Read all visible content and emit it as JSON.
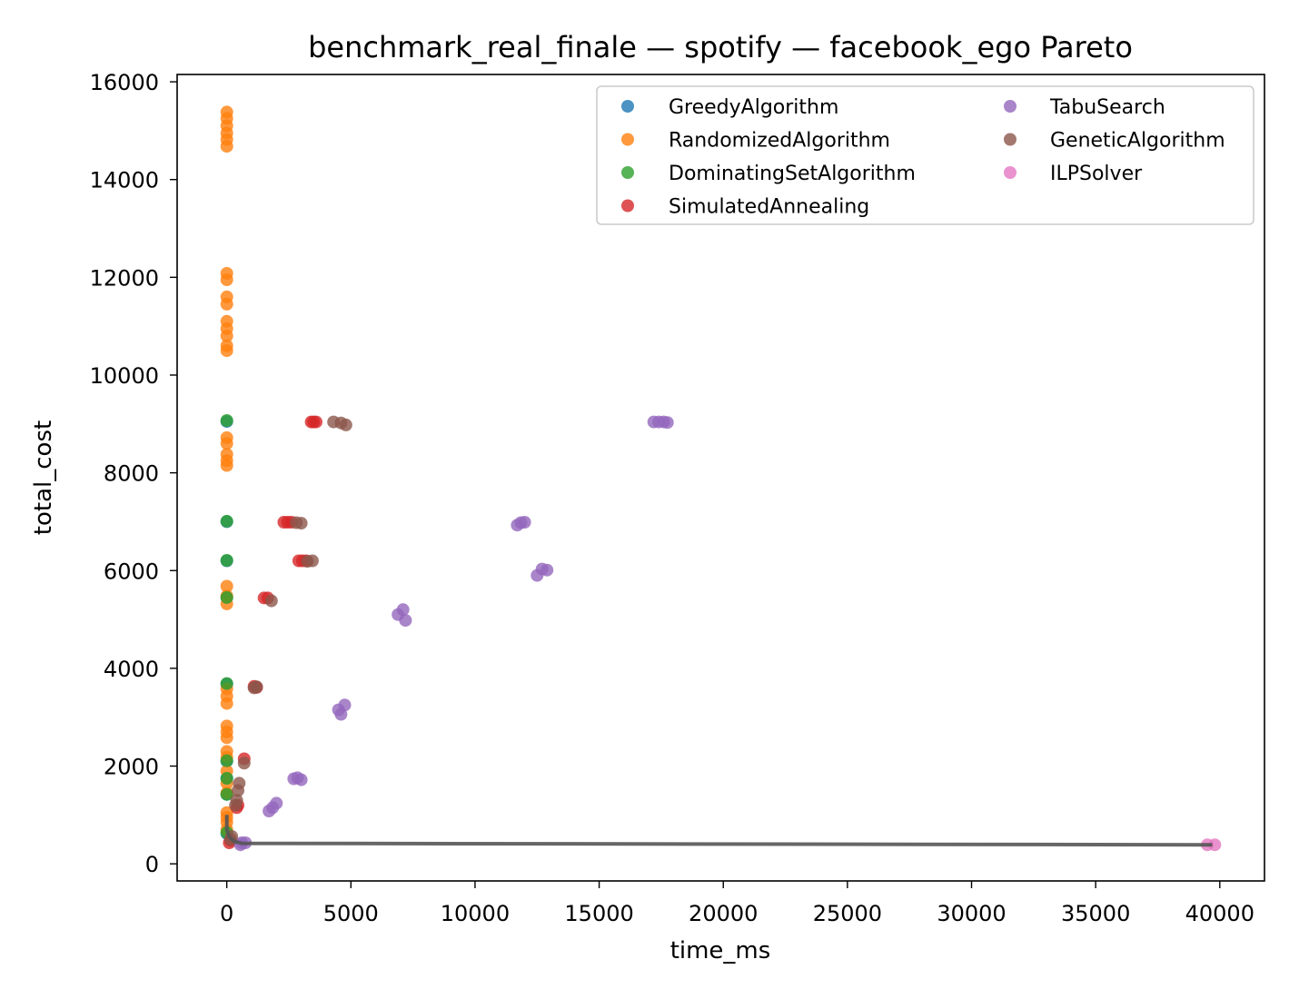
{
  "chart_data": {
    "type": "scatter",
    "title": "benchmark_real_finale — spotify — facebook_ego Pareto",
    "xlabel": "time_ms",
    "ylabel": "total_cost",
    "xlim": [
      -2000,
      41800
    ],
    "ylim": [
      -350,
      16150
    ],
    "x_ticks": [
      0,
      5000,
      10000,
      15000,
      20000,
      25000,
      30000,
      35000,
      40000
    ],
    "y_ticks": [
      0,
      2000,
      4000,
      6000,
      8000,
      10000,
      12000,
      14000,
      16000
    ],
    "grid": false,
    "legend_position": "upper-right",
    "legend_columns": 2,
    "series": [
      {
        "name": "GreedyAlgorithm",
        "color": "#1f77b4",
        "points": [
          [
            0,
            9050
          ],
          [
            0,
            7000
          ],
          [
            0,
            6200
          ],
          [
            0,
            5450
          ],
          [
            0,
            3680
          ],
          [
            0,
            2100
          ],
          [
            0,
            1750
          ],
          [
            0,
            1420
          ],
          [
            0,
            620
          ]
        ]
      },
      {
        "name": "RandomizedAlgorithm",
        "color": "#ff7f0e",
        "points": [
          [
            0,
            15380
          ],
          [
            0,
            15250
          ],
          [
            0,
            15100
          ],
          [
            0,
            14950
          ],
          [
            0,
            14820
          ],
          [
            0,
            14680
          ],
          [
            0,
            12080
          ],
          [
            0,
            11950
          ],
          [
            0,
            11600
          ],
          [
            0,
            11450
          ],
          [
            0,
            11100
          ],
          [
            0,
            10950
          ],
          [
            0,
            10800
          ],
          [
            0,
            10600
          ],
          [
            0,
            10500
          ],
          [
            0,
            8720
          ],
          [
            0,
            8600
          ],
          [
            0,
            8380
          ],
          [
            0,
            8250
          ],
          [
            0,
            8150
          ],
          [
            0,
            5680
          ],
          [
            0,
            5480
          ],
          [
            0,
            5320
          ],
          [
            0,
            3580
          ],
          [
            0,
            3430
          ],
          [
            0,
            3280
          ],
          [
            0,
            2820
          ],
          [
            0,
            2700
          ],
          [
            0,
            2580
          ],
          [
            0,
            2300
          ],
          [
            0,
            2180
          ],
          [
            0,
            1900
          ],
          [
            0,
            1650
          ],
          [
            0,
            1450
          ],
          [
            0,
            1050
          ],
          [
            0,
            950
          ],
          [
            0,
            850
          ],
          [
            0,
            700
          ]
        ]
      },
      {
        "name": "DominatingSetAlgorithm",
        "color": "#2ca02c",
        "points": [
          [
            0,
            9070
          ],
          [
            0,
            7010
          ],
          [
            0,
            6210
          ],
          [
            0,
            5450
          ],
          [
            0,
            3690
          ],
          [
            0,
            2110
          ],
          [
            0,
            1750
          ],
          [
            0,
            1420
          ],
          [
            0,
            640
          ]
        ]
      },
      {
        "name": "SimulatedAnnealing",
        "color": "#d62728",
        "points": [
          [
            3400,
            9040
          ],
          [
            3500,
            9040
          ],
          [
            3600,
            9040
          ],
          [
            2300,
            6990
          ],
          [
            2450,
            6990
          ],
          [
            2600,
            6990
          ],
          [
            2900,
            6200
          ],
          [
            3050,
            6200
          ],
          [
            3200,
            6200
          ],
          [
            1500,
            5440
          ],
          [
            1650,
            5440
          ],
          [
            1100,
            3630
          ],
          [
            1200,
            3610
          ],
          [
            700,
            2150
          ],
          [
            450,
            1200
          ],
          [
            400,
            1150
          ],
          [
            150,
            480
          ],
          [
            100,
            430
          ]
        ]
      },
      {
        "name": "TabuSearch",
        "color": "#9467bd",
        "points": [
          [
            17200,
            9040
          ],
          [
            17400,
            9040
          ],
          [
            17600,
            9040
          ],
          [
            17750,
            9030
          ],
          [
            11700,
            6930
          ],
          [
            11850,
            6980
          ],
          [
            12000,
            6990
          ],
          [
            12500,
            5900
          ],
          [
            12700,
            6030
          ],
          [
            12900,
            6010
          ],
          [
            6900,
            5100
          ],
          [
            7100,
            5200
          ],
          [
            7200,
            4980
          ],
          [
            4500,
            3150
          ],
          [
            4600,
            3060
          ],
          [
            4750,
            3250
          ],
          [
            2700,
            1740
          ],
          [
            2850,
            1760
          ],
          [
            3000,
            1720
          ],
          [
            1700,
            1080
          ],
          [
            1850,
            1150
          ],
          [
            2000,
            1240
          ],
          [
            600,
            430
          ],
          [
            750,
            430
          ],
          [
            550,
            390
          ]
        ]
      },
      {
        "name": "GeneticAlgorithm",
        "color": "#8c564b",
        "points": [
          [
            4300,
            9040
          ],
          [
            4600,
            9020
          ],
          [
            4800,
            8980
          ],
          [
            2800,
            6980
          ],
          [
            3000,
            6970
          ],
          [
            3250,
            6190
          ],
          [
            3450,
            6200
          ],
          [
            1800,
            5380
          ],
          [
            1100,
            3600
          ],
          [
            1200,
            3620
          ],
          [
            700,
            2060
          ],
          [
            500,
            1650
          ],
          [
            450,
            1500
          ],
          [
            400,
            1300
          ],
          [
            350,
            1200
          ],
          [
            200,
            560
          ],
          [
            150,
            500
          ]
        ]
      },
      {
        "name": "ILPSolver",
        "color": "#e377c2",
        "points": [
          [
            39500,
            390
          ],
          [
            39800,
            390
          ]
        ]
      }
    ],
    "pareto_front": {
      "color": "#555555",
      "points": [
        [
          0,
          1000
        ],
        [
          0,
          700
        ],
        [
          100,
          550
        ],
        [
          300,
          460
        ],
        [
          600,
          420
        ],
        [
          39700,
          390
        ]
      ]
    }
  }
}
